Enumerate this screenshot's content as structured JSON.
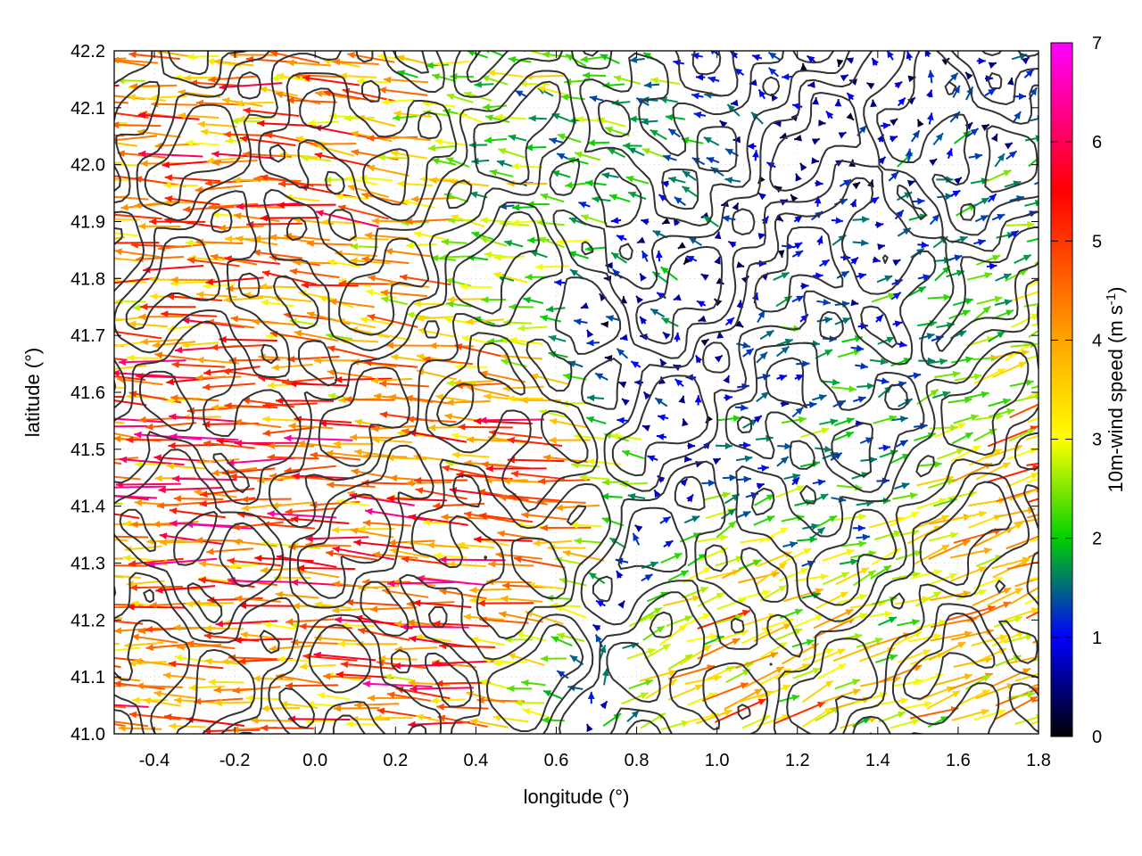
{
  "chart_data": {
    "type": "vector-field",
    "xlabel": "longitude (°)",
    "ylabel": "latitude (°)",
    "xlim": [
      -0.5,
      1.8
    ],
    "ylim": [
      41.0,
      42.2
    ],
    "xticks": [
      "-0.4",
      "-0.2",
      "0.0",
      "0.2",
      "0.4",
      "0.6",
      "0.8",
      "1.0",
      "1.2",
      "1.4",
      "1.6",
      "1.8"
    ],
    "xtick_values": [
      -0.4,
      -0.2,
      0.0,
      0.2,
      0.4,
      0.6,
      0.8,
      1.0,
      1.2,
      1.4,
      1.6,
      1.8
    ],
    "yticks": [
      "41.0",
      "41.1",
      "41.2",
      "41.3",
      "41.4",
      "41.5",
      "41.6",
      "41.7",
      "41.8",
      "41.9",
      "42.0",
      "42.1",
      "42.2"
    ],
    "ytick_values": [
      41.0,
      41.1,
      41.2,
      41.3,
      41.4,
      41.5,
      41.6,
      41.7,
      41.8,
      41.9,
      42.0,
      42.1,
      42.2
    ],
    "colorbar": {
      "label_main": "10m-wind speed (m s",
      "label_sup": "-1",
      "label_end": ")",
      "range": [
        0,
        7
      ],
      "ticks": [
        "0",
        "1",
        "2",
        "3",
        "4",
        "5",
        "6",
        "7"
      ],
      "tick_values": [
        0,
        1,
        2,
        3,
        4,
        5,
        6,
        7
      ],
      "palette": [
        "#000000",
        "#0000ff",
        "#00d000",
        "#ffff00",
        "#ffa500",
        "#ff0000",
        "#ff00ff"
      ],
      "palette_stops": [
        0,
        1,
        2,
        3,
        4,
        5.5,
        7
      ]
    },
    "vectors": [
      {
        "lon": -0.45,
        "lat": 41.65,
        "u": -3.5,
        "v": 0.0,
        "speed": 3.5
      },
      {
        "lon": -0.3,
        "lat": 41.65,
        "u": -4.8,
        "v": 0.1,
        "speed": 4.8
      },
      {
        "lon": -0.15,
        "lat": 41.57,
        "u": -5.0,
        "v": 0.0,
        "speed": 5.0
      },
      {
        "lon": 0.0,
        "lat": 41.65,
        "u": -4.5,
        "v": 0.0,
        "speed": 4.5
      },
      {
        "lon": 0.1,
        "lat": 41.75,
        "u": -4.0,
        "v": 0.6,
        "speed": 4.1
      },
      {
        "lon": -0.4,
        "lat": 41.55,
        "u": -4.5,
        "v": 0.3,
        "speed": 4.5
      },
      {
        "lon": 0.3,
        "lat": 41.27,
        "u": -4.5,
        "v": 0.3,
        "speed": 4.5
      },
      {
        "lon": 0.55,
        "lat": 41.46,
        "u": -4.5,
        "v": 0.3,
        "speed": 4.5
      },
      {
        "lon": 1.7,
        "lat": 41.22,
        "u": 3.5,
        "v": 1.2,
        "speed": 3.7
      },
      {
        "lon": 1.0,
        "lat": 41.15,
        "u": 3.2,
        "v": 1.3,
        "speed": 3.4
      },
      {
        "lon": 0.6,
        "lat": 41.9,
        "u": -2.2,
        "v": 0.3,
        "speed": 2.2
      },
      {
        "lon": 1.2,
        "lat": 41.55,
        "u": 1.5,
        "v": 0.3,
        "speed": 1.5
      },
      {
        "lon": 0.8,
        "lat": 41.75,
        "u": -0.6,
        "v": 0.4,
        "speed": 0.7
      }
    ],
    "contour_lines": "unlabeled dark-gray terrain contours over the field"
  }
}
